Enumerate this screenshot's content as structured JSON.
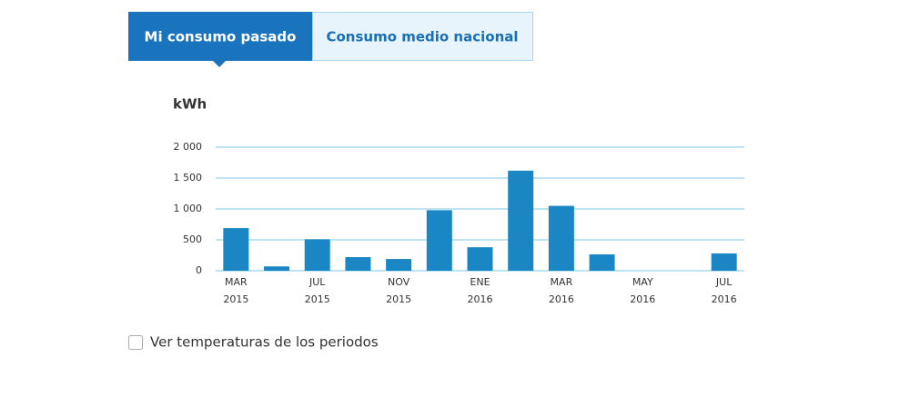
{
  "tabs": [
    "Mi consumo pasado",
    "Consumo medio nacional"
  ],
  "chart_data": {
    "type": "bar",
    "y_label": "kWh",
    "categories": [
      "MAR 2015",
      null,
      "JUL 2015",
      null,
      "NOV 2015",
      null,
      "ENE 2016",
      null,
      "MAR 2016",
      null,
      "MAY 2016",
      null,
      "JUL 2016"
    ],
    "values": [
      690,
      70,
      510,
      220,
      190,
      980,
      380,
      1620,
      1050,
      265,
      0,
      0,
      280
    ],
    "color": "#1a87c4",
    "ylim": [
      0,
      2000
    ],
    "yticks": [
      0,
      500,
      {
        "value": 1000,
        "label": "1 000"
      },
      {
        "value": 1500,
        "label": "1 500"
      },
      {
        "value": 2000,
        "label": "2 000"
      }
    ],
    "grid": true
  },
  "checkbox_label": "Ver temperaturas de los periodos"
}
